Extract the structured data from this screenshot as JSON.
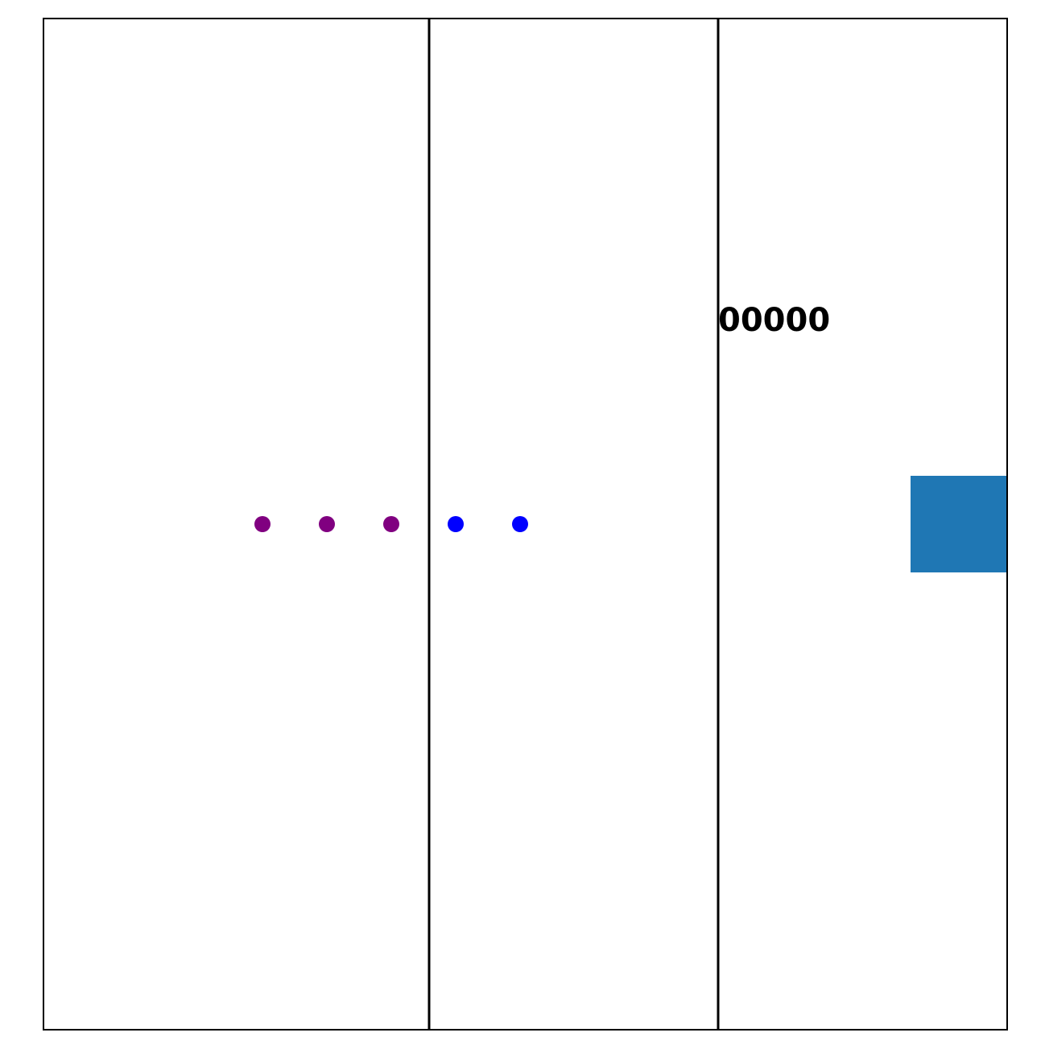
{
  "game": {
    "score": "00000",
    "colors": {
      "background": "#ffffff",
      "frame": "#000000",
      "trail_dot": "#800080",
      "head_dot": "#0000ff",
      "block": "#1f77b4"
    },
    "columns": 3,
    "dots": [
      {
        "kind": "trail",
        "color_key": "trail_dot"
      },
      {
        "kind": "trail",
        "color_key": "trail_dot"
      },
      {
        "kind": "trail",
        "color_key": "trail_dot"
      },
      {
        "kind": "head",
        "color_key": "head_dot"
      },
      {
        "kind": "head",
        "color_key": "head_dot"
      }
    ],
    "block": {
      "shape": "square",
      "color_key": "block"
    }
  }
}
